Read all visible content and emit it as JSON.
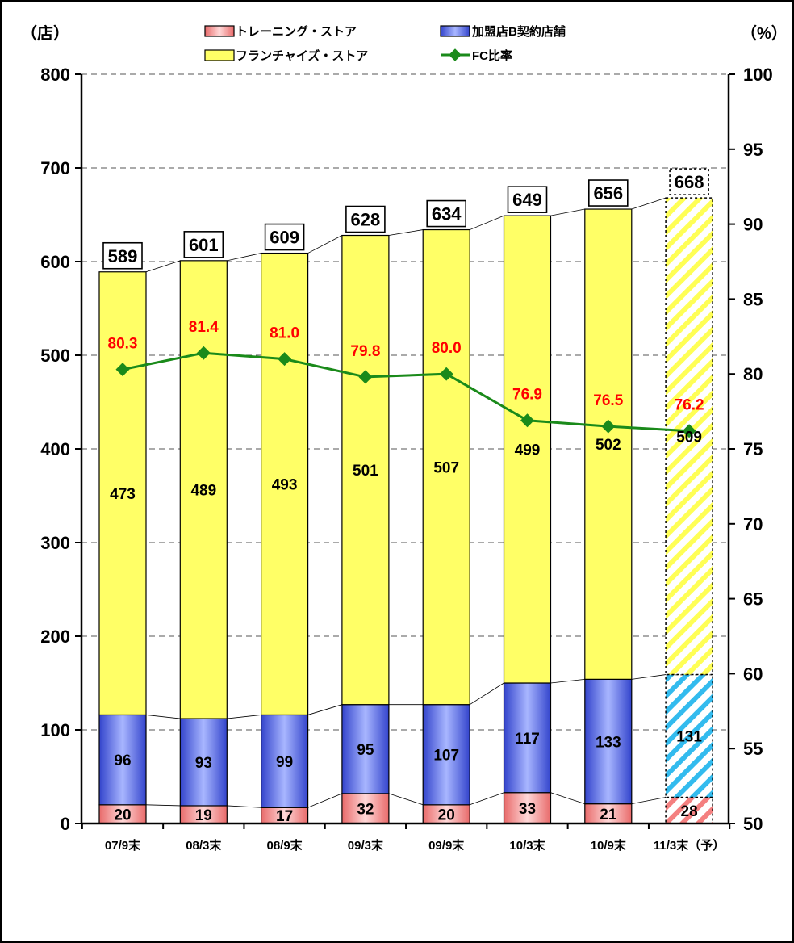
{
  "chart_data": {
    "type": "bar",
    "stacked": true,
    "categories": [
      "07/9末",
      "08/3末",
      "08/9末",
      "09/3末",
      "09/9末",
      "10/3末",
      "10/9末",
      "11/3末（予）"
    ],
    "series": [
      {
        "name": "トレーニング・ストア",
        "values": [
          20,
          19,
          17,
          32,
          20,
          33,
          21,
          28
        ],
        "color": "#f4a0a0"
      },
      {
        "name": "加盟店B契約店舗",
        "values": [
          96,
          93,
          99,
          95,
          107,
          117,
          133,
          131
        ],
        "color": "#6b7fe0"
      },
      {
        "name": "フランチャイズ・ストア",
        "values": [
          473,
          489,
          493,
          501,
          507,
          499,
          502,
          509
        ],
        "color": "#ffff66"
      }
    ],
    "totals": [
      "589",
      "601",
      "609",
      "628",
      "634",
      "649",
      "656",
      "668"
    ],
    "line_series": {
      "name": "FC比率",
      "values": [
        80.3,
        81.4,
        81.0,
        79.8,
        80.0,
        76.9,
        76.5,
        76.2
      ],
      "labels": [
        "80.3",
        "81.4",
        "81.0",
        "79.8",
        "80.0",
        "76.9",
        "76.5",
        "76.2"
      ],
      "color": "#1a8a1a",
      "label_color": "#ff0000",
      "axis": "right"
    },
    "projected_index": 7,
    "ylim": [
      0,
      800
    ],
    "y2lim": [
      50,
      100
    ],
    "yticks": [
      "0",
      "100",
      "200",
      "300",
      "400",
      "500",
      "600",
      "700",
      "800"
    ],
    "y2ticks": [
      "50",
      "55",
      "60",
      "65",
      "70",
      "75",
      "80",
      "85",
      "90",
      "95",
      "100"
    ],
    "ylabel": "（店）",
    "y2label": "（%）",
    "grid": true,
    "legend_position": "top"
  }
}
